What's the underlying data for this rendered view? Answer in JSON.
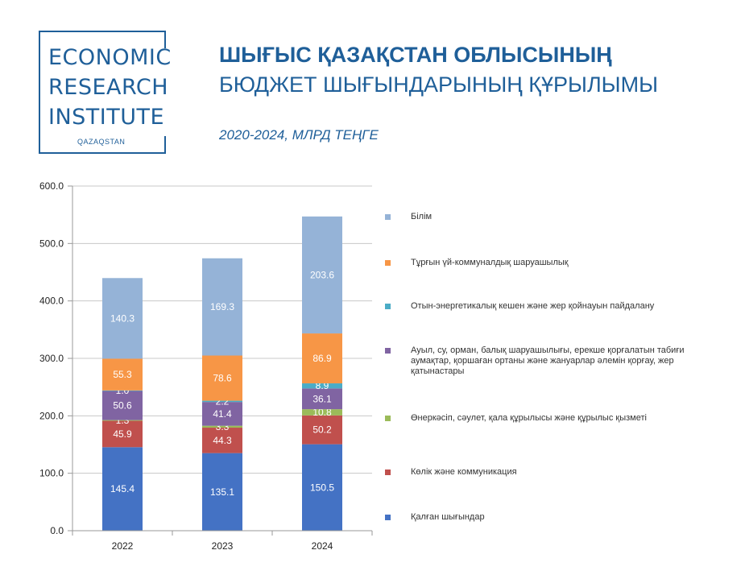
{
  "logo": {
    "line1": "ECONOMIC",
    "line2": "RESEARCH",
    "line3": "INSTITUTE",
    "sub": "QAZAQSTAN",
    "color": "#1f5f99"
  },
  "header": {
    "title_line1": "ШЫҒЫС ҚАЗАҚСТАН ОБЛЫСЫНЫҢ",
    "title_line2": "БЮДЖЕТ ШЫҒЫНДАРЫНЫҢ ҚҰРЫЛЫМЫ",
    "subtitle": "2020-2024, МЛРД ТЕҢГЕ"
  },
  "chart_data": {
    "type": "bar",
    "stacked": true,
    "categories": [
      "2022",
      "2023",
      "2024"
    ],
    "ylim": [
      0,
      600
    ],
    "yticks": [
      "0.0",
      "100.0",
      "200.0",
      "300.0",
      "400.0",
      "500.0",
      "600.0"
    ],
    "grid": true,
    "legend_position": "right",
    "series": [
      {
        "name": "Қалған шығындар",
        "color": "#4472c4",
        "values": [
          145.4,
          135.1,
          150.5
        ],
        "labels": [
          "145.4",
          "135.1",
          "150.5"
        ]
      },
      {
        "name": "Көлік және коммуникация",
        "color": "#c0504d",
        "values": [
          45.9,
          44.3,
          50.2
        ],
        "labels": [
          "45.9",
          "44.3",
          "50.2"
        ]
      },
      {
        "name": "Өнеркәсіп, сәулет, қала құрылысы және құрылыс қызметі",
        "color": "#9bbb59",
        "values": [
          1.3,
          3.3,
          10.8
        ],
        "labels": [
          "1.3",
          "3.3",
          "10.8"
        ]
      },
      {
        "name": "Ауыл, су, орман, балық шаруашылығы, ерекше қорғалатын табиғи аумақтар, қоршаған ортаны және жануарлар әлемін қорғау, жер қатынастары",
        "color": "#8064a2",
        "values": [
          50.6,
          41.4,
          36.1
        ],
        "labels": [
          "50.6",
          "41.4",
          "36.1"
        ]
      },
      {
        "name": "Отын-энергетикалық кешен және жер қойнауын пайдалану",
        "color": "#4bacc6",
        "values": [
          1.0,
          2.2,
          8.9
        ],
        "labels": [
          "1.0",
          "2.2",
          "8.9"
        ]
      },
      {
        "name": "Тұрғын үй-коммуналдық шаруашылық",
        "color": "#f79646",
        "values": [
          55.3,
          78.6,
          86.9
        ],
        "labels": [
          "55.3",
          "78.6",
          "86.9"
        ]
      },
      {
        "name": "Білім",
        "color": "#95b3d7",
        "values": [
          140.3,
          169.3,
          203.6
        ],
        "labels": [
          "140.3",
          "169.3",
          "203.6"
        ]
      }
    ]
  }
}
